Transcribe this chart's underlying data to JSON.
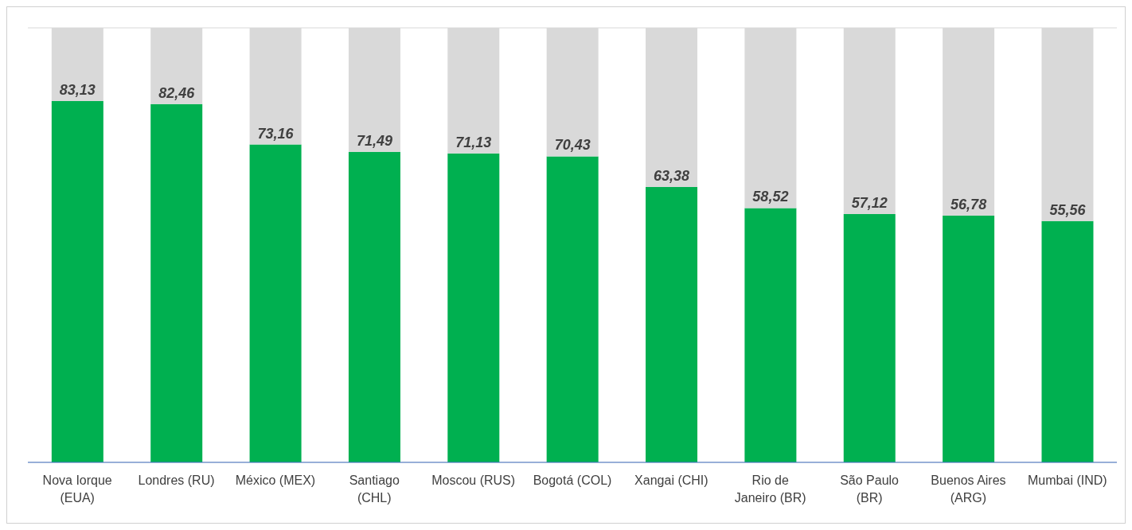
{
  "chart_data": {
    "type": "bar",
    "stacked": true,
    "categories": [
      "Nova Iorque (EUA)",
      "Londres (RU)",
      "México (MEX)",
      "Santiago (CHL)",
      "Moscou (RUS)",
      "Bogotá (COL)",
      "Xangai (CHI)",
      "Rio de Janeiro (BR)",
      "São Paulo (BR)",
      "Buenos Aires (ARG)",
      "Mumbai (IND)"
    ],
    "series": [
      {
        "color": "#00b050",
        "values": [
          83.13,
          82.46,
          73.16,
          71.49,
          71.13,
          70.43,
          63.38,
          58.52,
          57.12,
          56.78,
          55.56
        ],
        "value_labels": [
          "83,13",
          "82,46",
          "73,16",
          "71,49",
          "71,13",
          "70,43",
          "63,38",
          "58,52",
          "57,12",
          "56,78",
          "55,56"
        ]
      },
      {
        "color": "#d9d9d9",
        "values": [
          16.87,
          17.54,
          26.84,
          28.51,
          28.87,
          29.57,
          36.62,
          41.48,
          42.88,
          43.22,
          44.44
        ]
      }
    ],
    "ylim": [
      0,
      100
    ],
    "grid": "y",
    "tick_labels": "x",
    "legend": false
  }
}
